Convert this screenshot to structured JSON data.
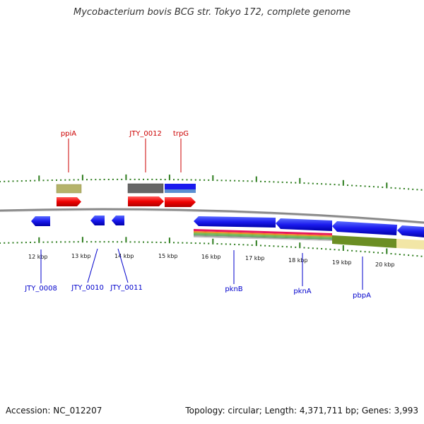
{
  "title": "Mycobacterium bovis BCG str. Tokyo 172, complete genome",
  "accession": "Accession: NC_012207",
  "summary": "Topology: circular; Length: 4,371,711 bp; Genes: 3,993",
  "colors": {
    "forward_label": "#cc0000",
    "reverse_label": "#0000cc",
    "tick": "#2e7d1e",
    "backbone": "#888888"
  },
  "scale_labels": [
    "12 kbp",
    "13 kbp",
    "14 kbp",
    "15 kbp",
    "16 kbp",
    "17 kbp",
    "18 kbp",
    "19 kbp",
    "20 kbp"
  ],
  "forward_genes": [
    {
      "name": "ppiA"
    },
    {
      "name": "JTY_0012"
    },
    {
      "name": "trpG"
    }
  ],
  "reverse_genes": [
    {
      "name": "JTY_0008"
    },
    {
      "name": "JTY_0010"
    },
    {
      "name": "JTY_0011"
    },
    {
      "name": "pknB"
    },
    {
      "name": "pknA"
    },
    {
      "name": "pbpA"
    }
  ]
}
